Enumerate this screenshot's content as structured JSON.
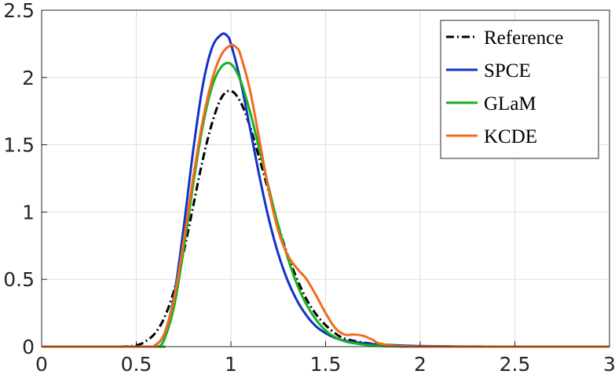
{
  "chart_data": {
    "type": "line",
    "title": "",
    "xlabel": "",
    "ylabel": "",
    "xlim": [
      0,
      3
    ],
    "ylim": [
      0,
      2.5
    ],
    "xticks": [
      0,
      0.5,
      1,
      1.5,
      2,
      2.5,
      3
    ],
    "xtick_labels": [
      "0",
      "0.5",
      "1",
      "1.5",
      "2",
      "2.5",
      "3"
    ],
    "yticks": [
      0,
      0.5,
      1,
      1.5,
      2,
      2.5
    ],
    "ytick_labels": [
      "0",
      "0.5",
      "1",
      "1.5",
      "2",
      "2.5"
    ],
    "grid": true,
    "legend": {
      "position": "top-right"
    },
    "series": [
      {
        "name": "Reference",
        "color": "#000000",
        "dash": "dash-dot",
        "x": [
          0,
          0.4,
          0.5,
          0.55,
          0.6,
          0.65,
          0.7,
          0.75,
          0.8,
          0.85,
          0.9,
          0.95,
          1.0,
          1.05,
          1.1,
          1.15,
          1.2,
          1.25,
          1.3,
          1.35,
          1.4,
          1.45,
          1.5,
          1.55,
          1.6,
          1.7,
          1.8,
          1.9,
          2.0,
          2.2,
          2.5,
          3.0
        ],
        "y": [
          0,
          0.0,
          0.01,
          0.04,
          0.1,
          0.22,
          0.42,
          0.7,
          1.04,
          1.38,
          1.66,
          1.85,
          1.9,
          1.82,
          1.64,
          1.4,
          1.15,
          0.9,
          0.68,
          0.5,
          0.35,
          0.24,
          0.16,
          0.1,
          0.06,
          0.03,
          0.015,
          0.006,
          0.003,
          0.001,
          0,
          0
        ]
      },
      {
        "name": "SPCE",
        "color": "#1132c8",
        "dash": "solid",
        "x": [
          0,
          0.55,
          0.6,
          0.65,
          0.7,
          0.75,
          0.8,
          0.85,
          0.9,
          0.95,
          0.98,
          1.0,
          1.05,
          1.1,
          1.15,
          1.2,
          1.25,
          1.3,
          1.35,
          1.4,
          1.45,
          1.5,
          1.55,
          1.6,
          1.7,
          1.8,
          1.9,
          2.0,
          2.2,
          2.5,
          3.0
        ],
        "y": [
          0,
          0.0,
          0.01,
          0.1,
          0.38,
          0.88,
          1.45,
          1.93,
          2.22,
          2.32,
          2.31,
          2.25,
          1.98,
          1.63,
          1.27,
          0.95,
          0.69,
          0.49,
          0.34,
          0.23,
          0.15,
          0.1,
          0.065,
          0.045,
          0.025,
          0.015,
          0.008,
          0.004,
          0.001,
          0,
          0
        ]
      },
      {
        "name": "GLaM",
        "color": "#17b31d",
        "dash": "solid",
        "x": [
          0,
          0.6,
          0.62,
          0.65,
          0.7,
          0.75,
          0.8,
          0.85,
          0.9,
          0.95,
          1.0,
          1.05,
          1.1,
          1.15,
          1.2,
          1.25,
          1.3,
          1.35,
          1.4,
          1.45,
          1.5,
          1.55,
          1.6,
          1.65,
          1.7,
          1.75,
          1.8,
          1.9,
          2.0,
          3.0
        ],
        "y": [
          0,
          0,
          0.0,
          0.06,
          0.3,
          0.72,
          1.2,
          1.63,
          1.93,
          2.08,
          2.1,
          1.98,
          1.75,
          1.47,
          1.18,
          0.9,
          0.66,
          0.46,
          0.31,
          0.2,
          0.12,
          0.07,
          0.04,
          0.025,
          0.015,
          0.008,
          0.004,
          0.001,
          0,
          0
        ]
      },
      {
        "name": "KCDE",
        "color": "#f26b1c",
        "dash": "solid",
        "x": [
          0,
          0.55,
          0.6,
          0.65,
          0.7,
          0.75,
          0.8,
          0.85,
          0.9,
          0.95,
          1.0,
          1.03,
          1.05,
          1.1,
          1.15,
          1.2,
          1.25,
          1.3,
          1.35,
          1.4,
          1.45,
          1.5,
          1.55,
          1.6,
          1.65,
          1.7,
          1.75,
          1.8,
          2.0,
          3.0
        ],
        "y": [
          0,
          0.0,
          0.01,
          0.1,
          0.36,
          0.78,
          1.25,
          1.67,
          1.98,
          2.17,
          2.24,
          2.22,
          2.17,
          1.91,
          1.54,
          1.16,
          0.86,
          0.68,
          0.58,
          0.5,
          0.38,
          0.25,
          0.14,
          0.09,
          0.09,
          0.08,
          0.05,
          0.02,
          0,
          0
        ]
      }
    ]
  }
}
